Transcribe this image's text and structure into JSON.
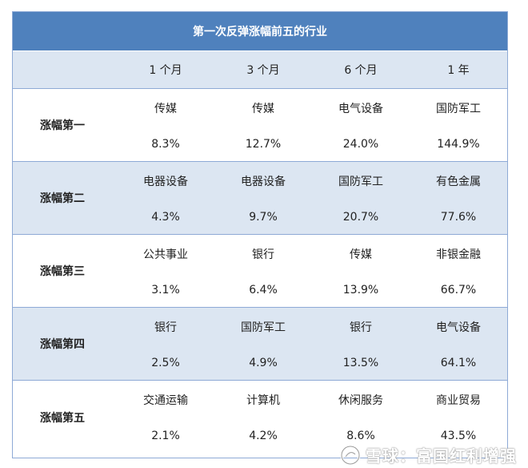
{
  "table": {
    "title": "第一次反弹涨幅前五的行业",
    "headers": [
      "1 个月",
      "3 个月",
      "6 个月",
      "1 年"
    ],
    "rows": [
      {
        "label": "涨幅第一",
        "cells": [
          {
            "name": "传媒",
            "pct": "8.3%"
          },
          {
            "name": "传媒",
            "pct": "12.7%"
          },
          {
            "name": "电气设备",
            "pct": "24.0%"
          },
          {
            "name": "国防军工",
            "pct": "144.9%"
          }
        ]
      },
      {
        "label": "涨幅第二",
        "cells": [
          {
            "name": "电器设备",
            "pct": "4.3%"
          },
          {
            "name": "电器设备",
            "pct": "9.7%"
          },
          {
            "name": "国防军工",
            "pct": "20.7%"
          },
          {
            "name": "有色金属",
            "pct": "77.6%"
          }
        ]
      },
      {
        "label": "涨幅第三",
        "cells": [
          {
            "name": "公共事业",
            "pct": "3.1%"
          },
          {
            "name": "银行",
            "pct": "6.4%"
          },
          {
            "name": "传媒",
            "pct": "13.9%"
          },
          {
            "name": "非银金融",
            "pct": "66.7%"
          }
        ]
      },
      {
        "label": "涨幅第四",
        "cells": [
          {
            "name": "银行",
            "pct": "2.5%"
          },
          {
            "name": "国防军工",
            "pct": "4.9%"
          },
          {
            "name": "银行",
            "pct": "13.5%"
          },
          {
            "name": "电气设备",
            "pct": "64.1%"
          }
        ]
      },
      {
        "label": "涨幅第五",
        "cells": [
          {
            "name": "交通运输",
            "pct": "2.1%"
          },
          {
            "name": "计算机",
            "pct": "4.2%"
          },
          {
            "name": "休闲服务",
            "pct": "8.6%"
          },
          {
            "name": "商业贸易",
            "pct": "43.5%"
          }
        ]
      }
    ]
  },
  "colors": {
    "title_bg": "#4f81bd",
    "alt_row_bg": "#dce6f2",
    "border": "#8eaad6"
  },
  "watermark": {
    "icon": "snowball-icon",
    "text": "雪球：富国红利增强"
  }
}
